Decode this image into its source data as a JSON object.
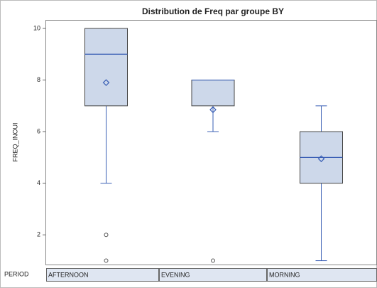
{
  "chart_data": {
    "type": "box",
    "title": "Distribution de Freq par groupe BY",
    "y_label": "FREQ_INOUI",
    "group_label": "PERIOD",
    "categories": [
      "AFTERNOON",
      "EVENING",
      "MORNING"
    ],
    "boxes": [
      {
        "min": 4,
        "q1": 7,
        "median": 9,
        "q3": 10,
        "max": 10,
        "mean": 7.9,
        "outliers": [
          2,
          1
        ]
      },
      {
        "min": 6,
        "q1": 7,
        "median": 8,
        "q3": 8,
        "max": 8,
        "mean": 6.85,
        "outliers": [
          1
        ]
      },
      {
        "min": 1,
        "q1": 4,
        "median": 5,
        "q3": 6,
        "max": 7,
        "mean": 4.95,
        "outliers": []
      }
    ],
    "box_color": "#cdd8ea",
    "line_color": "#3a5fb5",
    "ylim": [
      0.85,
      10.33
    ],
    "yticks": [
      2,
      4,
      6,
      8,
      10
    ]
  }
}
